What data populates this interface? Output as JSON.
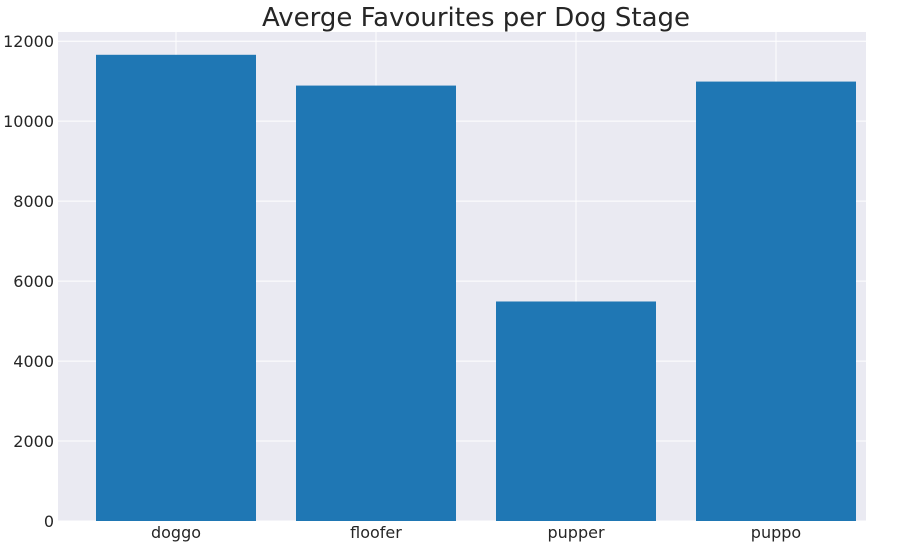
{
  "chart_data": {
    "type": "bar",
    "title": "Averge Favourites per Dog Stage",
    "xlabel": "",
    "ylabel": "",
    "categories": [
      "doggo",
      "floofer",
      "pupper",
      "puppo"
    ],
    "values": [
      11660,
      10890,
      5490,
      10990
    ],
    "ylim": [
      0,
      12230
    ],
    "yticks": [
      0,
      2000,
      4000,
      6000,
      8000,
      10000,
      12000
    ],
    "grid": true,
    "colors": {
      "bar": "#1f77b4",
      "plot_background": "#eaeaf2",
      "grid": "#ffffff",
      "text": "#262626"
    }
  }
}
